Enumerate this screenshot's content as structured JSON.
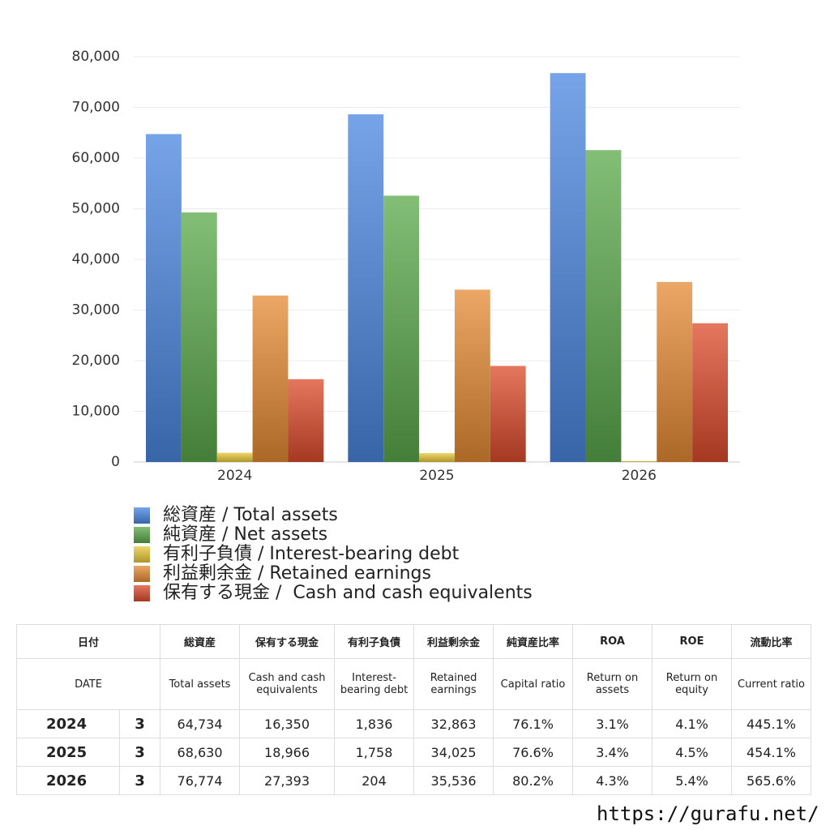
{
  "chart_data": {
    "type": "bar",
    "categories": [
      "2024",
      "2025",
      "2026"
    ],
    "series": [
      {
        "name": "総資産 / Total assets",
        "color": "#4a86e0",
        "values": [
          64734,
          68630,
          76774
        ]
      },
      {
        "name": "純資産 / Net assets",
        "color": "#5aa84a",
        "values": [
          49263,
          52571,
          61573
        ]
      },
      {
        "name": "有利子負債 / Interest-bearing debt",
        "color": "#e8c83a",
        "values": [
          1836,
          1758,
          204
        ]
      },
      {
        "name": "利益剰余金 / Retained earnings",
        "color": "#e58a34",
        "values": [
          32863,
          34025,
          35536
        ]
      },
      {
        "name": "保有する現金 /  Cash and cash equivalents",
        "color": "#dc4a2a",
        "values": [
          16350,
          18966,
          27393
        ]
      }
    ],
    "ylim": [
      0,
      80000
    ],
    "yticks": [
      0,
      {
        "value": 10000,
        "label": "10,000"
      },
      {
        "value": 20000,
        "label": "20,000"
      },
      {
        "value": 30000,
        "label": "30,000"
      },
      {
        "value": 40000,
        "label": "40,000"
      },
      {
        "value": 50000,
        "label": "50,000"
      },
      {
        "value": 60000,
        "label": "60,000"
      },
      {
        "value": 70000,
        "label": "70,000"
      },
      {
        "value": 80000,
        "label": "80,000"
      }
    ],
    "grid": true
  },
  "table": {
    "header_ja": [
      "日付",
      "総資産",
      "保有する現金",
      "有利子負債",
      "利益剰余金",
      "純資産比率",
      "ROA",
      "ROE",
      "流動比率"
    ],
    "header_en": [
      "DATE",
      "Total assets",
      "Cash and cash equivalents",
      "Interest-bearing debt",
      "Retained earnings",
      "Capital ratio",
      "Return on assets",
      "Return on equity",
      "Current ratio"
    ],
    "rows": [
      [
        "2024",
        "3",
        "64,734",
        "16,350",
        "1,836",
        "32,863",
        "76.1%",
        "3.1%",
        "4.1%",
        "445.1%"
      ],
      [
        "2025",
        "3",
        "68,630",
        "18,966",
        "1,758",
        "34,025",
        "76.6%",
        "3.4%",
        "4.5%",
        "454.1%"
      ],
      [
        "2026",
        "3",
        "76,774",
        "27,393",
        "204",
        "35,536",
        "80.2%",
        "4.3%",
        "5.4%",
        "565.6%"
      ]
    ]
  },
  "footer": "https://gurafu.net/"
}
